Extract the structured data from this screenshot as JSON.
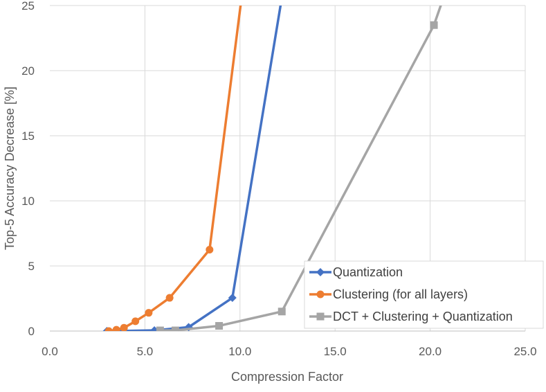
{
  "chart_data": {
    "type": "line",
    "title": "",
    "xlabel": "Compression Factor",
    "ylabel": "Top-5 Accuracy Decrease [%]",
    "xlim": [
      0,
      25
    ],
    "ylim": [
      0,
      25
    ],
    "xticks": [
      "0.0",
      "5.0",
      "10.0",
      "15.0",
      "20.0",
      "25.0"
    ],
    "yticks": [
      "0",
      "5",
      "10",
      "15",
      "20",
      "25"
    ],
    "grid": true,
    "legend_position": "bottom-right",
    "series": [
      {
        "name": "Quantization",
        "color": "#4472C4",
        "marker": "diamond",
        "points": [
          [
            3.0,
            0.0
          ],
          [
            3.5,
            0.0
          ],
          [
            5.5,
            0.05
          ],
          [
            7.3,
            0.3
          ],
          [
            9.6,
            2.55
          ],
          [
            12.2,
            25.6
          ]
        ]
      },
      {
        "name": "Clustering (for all layers)",
        "color": "#ED7D31",
        "marker": "circle",
        "points": [
          [
            3.1,
            0.0
          ],
          [
            3.5,
            0.1
          ],
          [
            3.9,
            0.25
          ],
          [
            4.5,
            0.75
          ],
          [
            5.2,
            1.4
          ],
          [
            6.3,
            2.55
          ],
          [
            8.4,
            6.25
          ],
          [
            10.1,
            25.8
          ]
        ]
      },
      {
        "name": "DCT + Clustering + Quantization",
        "color": "#A5A5A5",
        "marker": "square",
        "points": [
          [
            5.8,
            0.05
          ],
          [
            6.6,
            0.05
          ],
          [
            8.9,
            0.4
          ],
          [
            12.2,
            1.5
          ],
          [
            20.2,
            23.5
          ],
          [
            20.7,
            25.6
          ]
        ]
      }
    ]
  }
}
